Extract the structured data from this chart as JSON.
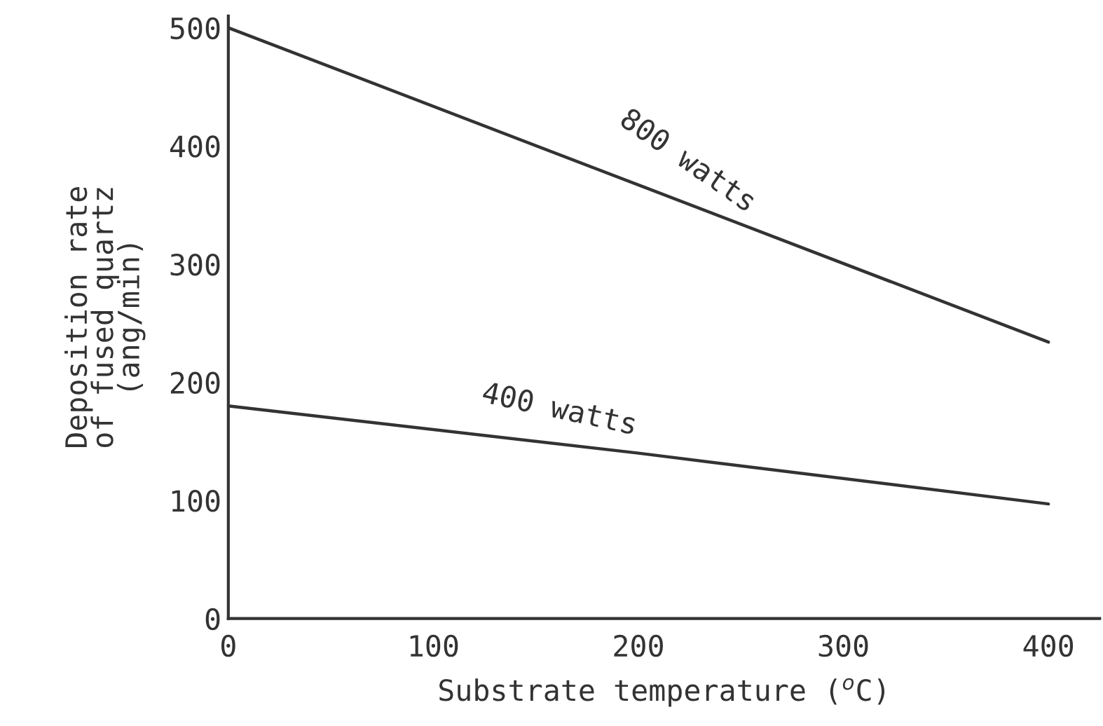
{
  "chart_data": {
    "type": "line",
    "xlabel": "Substrate temperature ($^{o}$C)",
    "ylabel": "Deposition rate\nof fused quartz\n(ang/min)",
    "x": [
      0,
      200,
      400
    ],
    "series": [
      {
        "name": "800 watts",
        "color": "#333333",
        "values": [
          500,
          367,
          234
        ]
      },
      {
        "name": "400 watts",
        "color": "#333333",
        "values": [
          180,
          140,
          97
        ]
      }
    ],
    "xlim": [
      0,
      425
    ],
    "ylim": [
      0,
      510
    ],
    "xticks": [
      0,
      100,
      200,
      300,
      400
    ],
    "yticks": [
      0,
      100,
      200,
      300,
      400,
      500
    ],
    "grid": false,
    "legend": false,
    "marker": "none",
    "line_style": "solid"
  }
}
